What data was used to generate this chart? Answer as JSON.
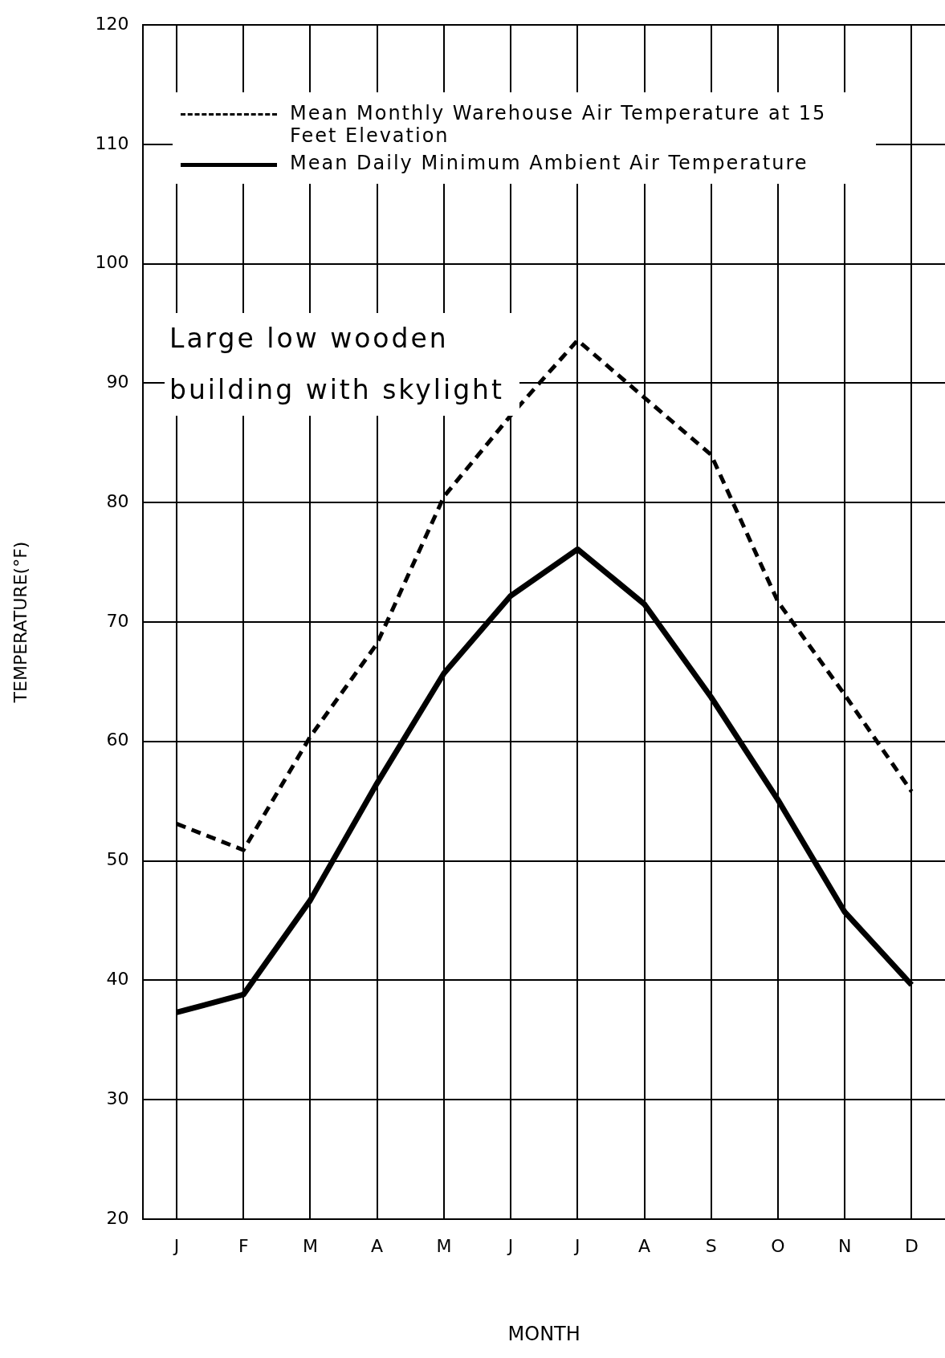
{
  "chart_data": {
    "type": "line",
    "xlabel": "MONTH",
    "ylabel": "TEMPERATURE(°F)",
    "categories": [
      "J",
      "F",
      "M",
      "A",
      "M",
      "J",
      "J",
      "A",
      "S",
      "O",
      "N",
      "D"
    ],
    "series": [
      {
        "name": "Mean Monthly Warehouse Air Temperature at 15 Feet Elevation",
        "color": "#000000",
        "line_style": "dashed",
        "values": [
          53.1,
          50.9,
          60.4,
          68.2,
          80.5,
          87.3,
          93.6,
          88.8,
          84.0,
          71.7,
          63.9,
          55.8
        ]
      },
      {
        "name": "Mean Daily Minimum Ambient Air Temperature",
        "color": "#000000",
        "line_style": "solid",
        "values": [
          37.3,
          38.8,
          46.7,
          56.5,
          65.7,
          72.2,
          76.1,
          71.5,
          63.7,
          55.1,
          45.7,
          39.6
        ]
      }
    ],
    "ylim": [
      20,
      120
    ],
    "yticks": [
      20,
      30,
      40,
      50,
      60,
      70,
      80,
      90,
      100,
      110,
      120
    ],
    "grid": true,
    "legend": "top",
    "marker": "none",
    "annotations": [
      "Large low wooden building with skylight"
    ]
  }
}
